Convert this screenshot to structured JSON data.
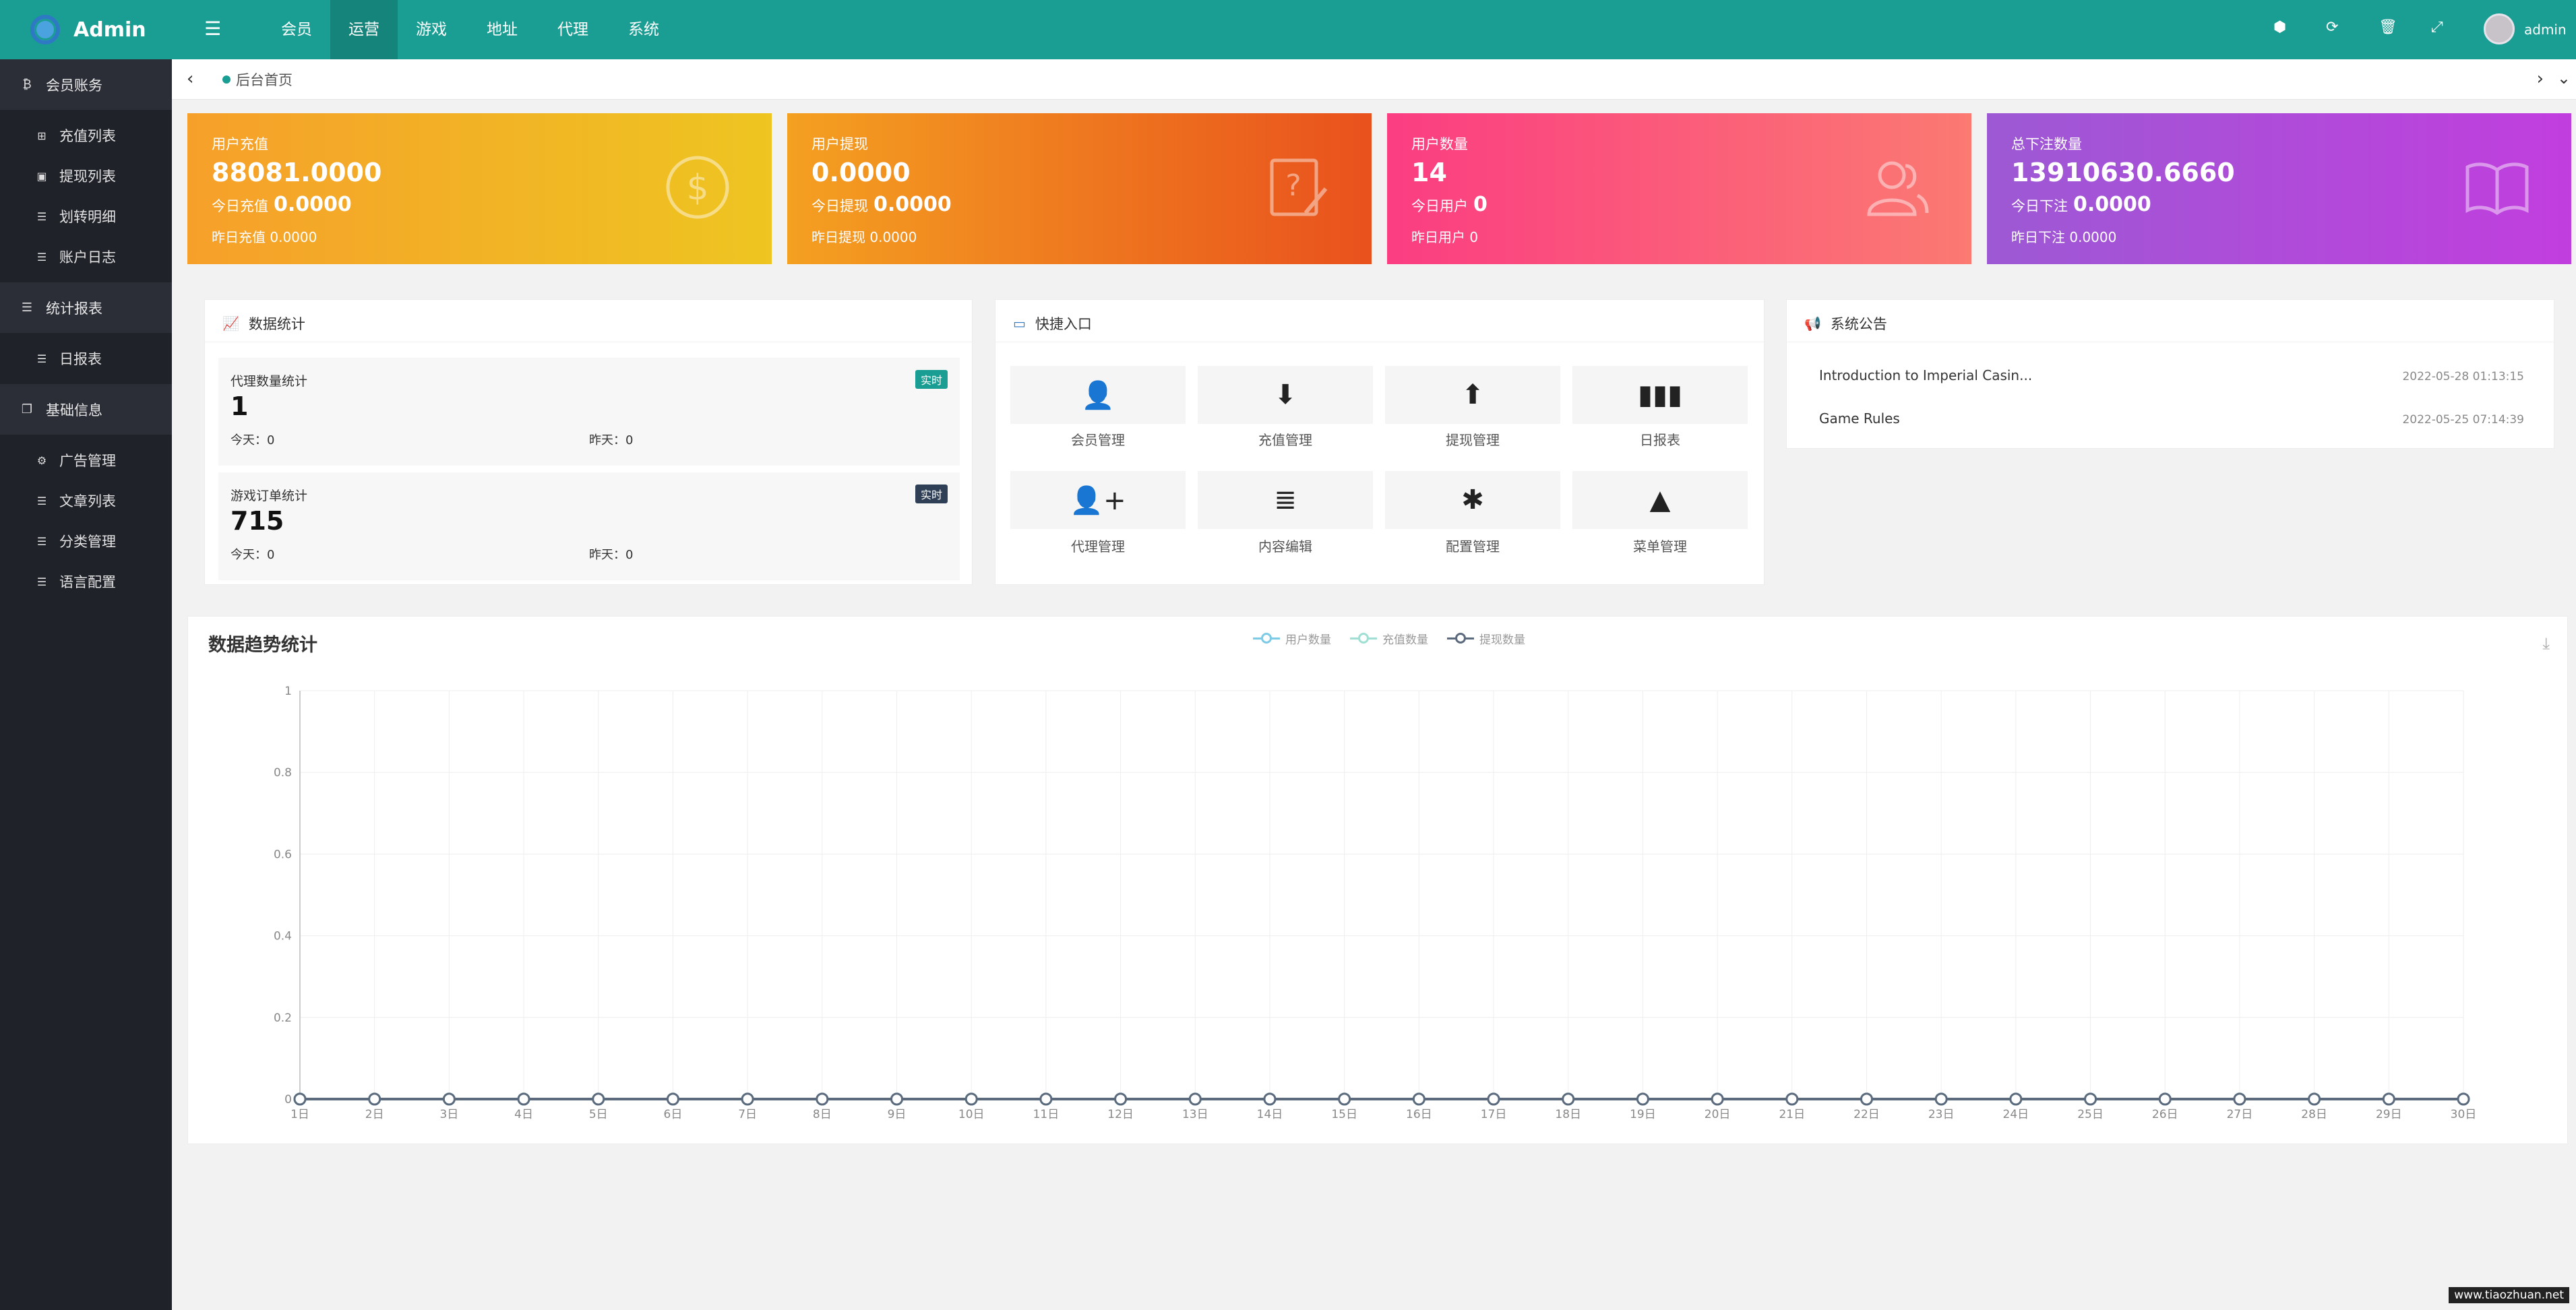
{
  "app": {
    "logo_text": "Admin"
  },
  "header": {
    "nav": [
      "会员",
      "运营",
      "游戏",
      "地址",
      "代理",
      "系统"
    ],
    "active_index": 1,
    "user": "admin"
  },
  "sidebar": {
    "groups": [
      {
        "label": "会员账务",
        "icon": "bitcoin-icon",
        "items": [
          "充值列表",
          "提现列表",
          "划转明细",
          "账户日志"
        ]
      },
      {
        "label": "统计报表",
        "icon": "list-icon",
        "items": [
          "日报表"
        ]
      },
      {
        "label": "基础信息",
        "icon": "copy-icon",
        "items": [
          "广告管理",
          "文章列表",
          "分类管理",
          "语言配置"
        ]
      }
    ]
  },
  "tabs": {
    "home": "后台首页"
  },
  "cards": [
    {
      "title": "用户充值",
      "value": "88081.0000",
      "today_label": "今日充值",
      "today_value": "0.0000",
      "yesterday": "昨日充值 0.0000",
      "icon": "dollar-icon"
    },
    {
      "title": "用户提现",
      "value": "0.0000",
      "today_label": "今日提现",
      "today_value": "0.0000",
      "yesterday": "昨日提现 0.0000",
      "icon": "question-doc-icon"
    },
    {
      "title": "用户数量",
      "value": "14",
      "today_label": "今日用户",
      "today_value": "0",
      "yesterday": "昨日用户 0",
      "icon": "users-icon"
    },
    {
      "title": "总下注数量",
      "value": "13910630.6660",
      "today_label": "今日下注",
      "today_value": "0.0000",
      "yesterday": "昨日下注 0.0000",
      "icon": "book-icon"
    }
  ],
  "data_stats": {
    "title": "数据统计",
    "boxes": [
      {
        "label": "代理数量统计",
        "badge": "实时",
        "value": "1",
        "today": "今天：0",
        "yesterday": "昨天：0"
      },
      {
        "label": "游戏订单统计",
        "badge": "实时",
        "value": "715",
        "today": "今天：0",
        "yesterday": "昨天：0"
      }
    ]
  },
  "quick": {
    "title": "快捷入口",
    "items": [
      {
        "label": "会员管理",
        "icon": "user-icon"
      },
      {
        "label": "充值管理",
        "icon": "arrow-down-circle-icon"
      },
      {
        "label": "提现管理",
        "icon": "arrow-up-circle-icon"
      },
      {
        "label": "日报表",
        "icon": "bar-chart-icon"
      },
      {
        "label": "代理管理",
        "icon": "user-plus-icon"
      },
      {
        "label": "内容编辑",
        "icon": "menu-lines-icon"
      },
      {
        "label": "配置管理",
        "icon": "asterisk-icon"
      },
      {
        "label": "菜单管理",
        "icon": "tree-icon"
      }
    ]
  },
  "notice": {
    "title": "系统公告",
    "items": [
      {
        "text": "Introduction to Imperial Casin...",
        "date": "2022-05-28 01:13:15"
      },
      {
        "text": "Game Rules",
        "date": "2022-05-25 07:14:39"
      }
    ]
  },
  "chart_data": {
    "type": "line",
    "title": "数据趋势统计",
    "x": [
      "1日",
      "2日",
      "3日",
      "4日",
      "5日",
      "6日",
      "7日",
      "8日",
      "9日",
      "10日",
      "11日",
      "12日",
      "13日",
      "14日",
      "15日",
      "16日",
      "17日",
      "18日",
      "19日",
      "20日",
      "21日",
      "22日",
      "23日",
      "24日",
      "25日",
      "26日",
      "27日",
      "28日",
      "29日",
      "30日"
    ],
    "series": [
      {
        "name": "用户数量",
        "color": "#7ecbe8",
        "values": [
          0,
          0,
          0,
          0,
          0,
          0,
          0,
          0,
          0,
          0,
          0,
          0,
          0,
          0,
          0,
          0,
          0,
          0,
          0,
          0,
          0,
          0,
          0,
          0,
          0,
          0,
          0,
          0,
          0,
          0
        ]
      },
      {
        "name": "充值数量",
        "color": "#a0e0d4",
        "values": [
          0,
          0,
          0,
          0,
          0,
          0,
          0,
          0,
          0,
          0,
          0,
          0,
          0,
          0,
          0,
          0,
          0,
          0,
          0,
          0,
          0,
          0,
          0,
          0,
          0,
          0,
          0,
          0,
          0,
          0
        ]
      },
      {
        "name": "提现数量",
        "color": "#5b6a7d",
        "values": [
          0,
          0,
          0,
          0,
          0,
          0,
          0,
          0,
          0,
          0,
          0,
          0,
          0,
          0,
          0,
          0,
          0,
          0,
          0,
          0,
          0,
          0,
          0,
          0,
          0,
          0,
          0,
          0,
          0,
          0
        ]
      }
    ],
    "y_ticks": [
      "0",
      "0.2",
      "0.4",
      "0.6",
      "0.8",
      "1"
    ],
    "ylim": [
      0,
      1
    ],
    "grid": true,
    "legend": "top-center"
  },
  "watermark": "www.tiaozhuan.net"
}
